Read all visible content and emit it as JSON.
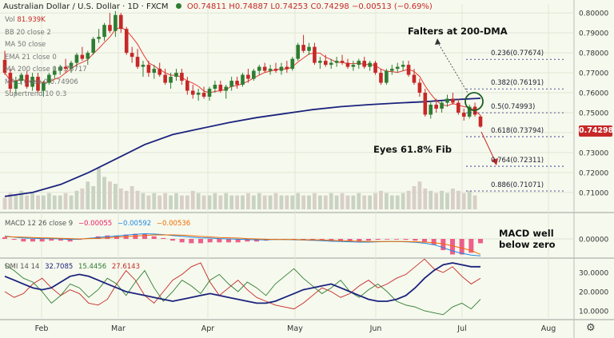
{
  "header": {
    "symbol": "Australian Dollar / U.S. Dollar · 1D · FXCM",
    "ohlc": "O0.74811 H0.74887 L0.74253 C0.74298 −0.00513 (−0.69%)"
  },
  "legend": [
    {
      "label": "Vol",
      "value": "81.939K"
    },
    {
      "label": "BB 20 close 2",
      "value": ""
    },
    {
      "label": "MA 50 close",
      "value": ""
    },
    {
      "label": "EMA 21 close 0",
      "value": ""
    },
    {
      "label": "MA 200 close 0",
      "value": "0.75717"
    },
    {
      "label": "MA 5 close 0",
      "value": "0.74906"
    },
    {
      "label": "Supertrend 10 0.3",
      "value": ""
    }
  ],
  "annotations": {
    "falters": "Falters at 200-DMA",
    "eyes": "Eyes 61.8% Fib",
    "macd_note": "MACD well below zero"
  },
  "price_tag": "0.74298",
  "macd_legend": {
    "label": "MACD 12 26 close 9",
    "v1": "−0.00055",
    "v2": "−0.00592",
    "v3": "−0.00536"
  },
  "dmi_legend": {
    "label": "DMI 14 14",
    "v1": "32.7085",
    "v2": "15.4456",
    "v3": "27.6143"
  },
  "colors": {
    "up": "#2e7d32",
    "down": "#c62828",
    "ma200": "#1a237e",
    "ma5": "#e53935",
    "macd": "#1e88e5",
    "signal": "#ef6c00",
    "hist": "#e91e63",
    "fib": "#1a237e",
    "tag": "#c62828"
  },
  "chart_data": {
    "type": "candlestick",
    "x_ticks": [
      "Feb",
      "Mar",
      "Apr",
      "May",
      "Jun",
      "Jul",
      "Aug"
    ],
    "price_axis": [
      "0.80000",
      "0.79000",
      "0.78000",
      "0.77000",
      "0.76000",
      "0.75000",
      "0.74000",
      "0.73000",
      "0.72000",
      "0.71000"
    ],
    "macd_axis": [
      "0.00000"
    ],
    "dmi_axis": [
      "30.0000",
      "20.0000",
      "10.0000"
    ],
    "fib_levels": [
      {
        "label": "0.236(0.77674)",
        "value": 0.77674
      },
      {
        "label": "0.382(0.76191)",
        "value": 0.76191
      },
      {
        "label": "0.5(0.74993)",
        "value": 0.74993
      },
      {
        "label": "0.618(0.73794)",
        "value": 0.73794
      },
      {
        "label": "0.764(0.72311)",
        "value": 0.72311
      },
      {
        "label": "0.886(0.71071)",
        "value": 0.71071
      }
    ],
    "candles": [
      [
        0.7765,
        0.781,
        0.769,
        0.77
      ],
      [
        0.77,
        0.772,
        0.76,
        0.762
      ],
      [
        0.762,
        0.768,
        0.759,
        0.766
      ],
      [
        0.766,
        0.77,
        0.764,
        0.769
      ],
      [
        0.769,
        0.771,
        0.762,
        0.763
      ],
      [
        0.763,
        0.77,
        0.761,
        0.768
      ],
      [
        0.768,
        0.77,
        0.76,
        0.761
      ],
      [
        0.761,
        0.766,
        0.758,
        0.765
      ],
      [
        0.765,
        0.77,
        0.764,
        0.769
      ],
      [
        0.769,
        0.773,
        0.767,
        0.771
      ],
      [
        0.771,
        0.774,
        0.769,
        0.773
      ],
      [
        0.773,
        0.777,
        0.77,
        0.772
      ],
      [
        0.772,
        0.776,
        0.77,
        0.775
      ],
      [
        0.775,
        0.78,
        0.773,
        0.779
      ],
      [
        0.779,
        0.783,
        0.776,
        0.777
      ],
      [
        0.777,
        0.781,
        0.774,
        0.78
      ],
      [
        0.78,
        0.788,
        0.779,
        0.787
      ],
      [
        0.787,
        0.792,
        0.785,
        0.788
      ],
      [
        0.788,
        0.795,
        0.786,
        0.794
      ],
      [
        0.794,
        0.8,
        0.79,
        0.791
      ],
      [
        0.791,
        0.801,
        0.788,
        0.799
      ],
      [
        0.799,
        0.8,
        0.79,
        0.792
      ],
      [
        0.792,
        0.793,
        0.779,
        0.78
      ],
      [
        0.78,
        0.783,
        0.775,
        0.778
      ],
      [
        0.778,
        0.782,
        0.772,
        0.773
      ],
      [
        0.773,
        0.776,
        0.768,
        0.774
      ],
      [
        0.774,
        0.776,
        0.768,
        0.77
      ],
      [
        0.77,
        0.774,
        0.767,
        0.772
      ],
      [
        0.772,
        0.775,
        0.768,
        0.769
      ],
      [
        0.769,
        0.772,
        0.764,
        0.765
      ],
      [
        0.765,
        0.77,
        0.762,
        0.768
      ],
      [
        0.768,
        0.772,
        0.766,
        0.77
      ],
      [
        0.77,
        0.772,
        0.764,
        0.766
      ],
      [
        0.766,
        0.768,
        0.759,
        0.761
      ],
      [
        0.761,
        0.764,
        0.757,
        0.759
      ],
      [
        0.759,
        0.762,
        0.756,
        0.76
      ],
      [
        0.76,
        0.763,
        0.757,
        0.758
      ],
      [
        0.758,
        0.763,
        0.756,
        0.762
      ],
      [
        0.762,
        0.766,
        0.76,
        0.764
      ],
      [
        0.764,
        0.766,
        0.76,
        0.761
      ],
      [
        0.761,
        0.764,
        0.757,
        0.763
      ],
      [
        0.763,
        0.768,
        0.761,
        0.766
      ],
      [
        0.766,
        0.768,
        0.762,
        0.764
      ],
      [
        0.764,
        0.77,
        0.763,
        0.769
      ],
      [
        0.769,
        0.772,
        0.765,
        0.767
      ],
      [
        0.767,
        0.772,
        0.766,
        0.771
      ],
      [
        0.771,
        0.774,
        0.769,
        0.773
      ],
      [
        0.773,
        0.775,
        0.77,
        0.771
      ],
      [
        0.771,
        0.774,
        0.769,
        0.772
      ],
      [
        0.772,
        0.775,
        0.77,
        0.771
      ],
      [
        0.771,
        0.775,
        0.769,
        0.773
      ],
      [
        0.773,
        0.776,
        0.77,
        0.772
      ],
      [
        0.772,
        0.778,
        0.771,
        0.777
      ],
      [
        0.777,
        0.785,
        0.776,
        0.784
      ],
      [
        0.784,
        0.789,
        0.78,
        0.781
      ],
      [
        0.781,
        0.785,
        0.779,
        0.783
      ],
      [
        0.783,
        0.785,
        0.774,
        0.775
      ],
      [
        0.775,
        0.778,
        0.772,
        0.776
      ],
      [
        0.776,
        0.779,
        0.773,
        0.774
      ],
      [
        0.774,
        0.777,
        0.772,
        0.775
      ],
      [
        0.775,
        0.778,
        0.773,
        0.776
      ],
      [
        0.776,
        0.779,
        0.774,
        0.775
      ],
      [
        0.775,
        0.777,
        0.772,
        0.773
      ],
      [
        0.773,
        0.776,
        0.771,
        0.774
      ],
      [
        0.774,
        0.777,
        0.772,
        0.776
      ],
      [
        0.776,
        0.778,
        0.772,
        0.773
      ],
      [
        0.773,
        0.776,
        0.771,
        0.775
      ],
      [
        0.775,
        0.776,
        0.769,
        0.77
      ],
      [
        0.77,
        0.772,
        0.764,
        0.765
      ],
      [
        0.765,
        0.772,
        0.764,
        0.771
      ],
      [
        0.771,
        0.774,
        0.769,
        0.772
      ],
      [
        0.772,
        0.775,
        0.77,
        0.773
      ],
      [
        0.773,
        0.776,
        0.771,
        0.774
      ],
      [
        0.774,
        0.776,
        0.768,
        0.769
      ],
      [
        0.769,
        0.772,
        0.764,
        0.765
      ],
      [
        0.765,
        0.767,
        0.758,
        0.76
      ],
      [
        0.76,
        0.762,
        0.748,
        0.749
      ],
      [
        0.749,
        0.756,
        0.747,
        0.754
      ],
      [
        0.754,
        0.757,
        0.75,
        0.752
      ],
      [
        0.752,
        0.756,
        0.75,
        0.755
      ],
      [
        0.755,
        0.759,
        0.753,
        0.757
      ],
      [
        0.757,
        0.76,
        0.754,
        0.755
      ],
      [
        0.755,
        0.757,
        0.749,
        0.75
      ],
      [
        0.75,
        0.752,
        0.746,
        0.748
      ],
      [
        0.748,
        0.754,
        0.747,
        0.753
      ],
      [
        0.753,
        0.755,
        0.748,
        0.749
      ],
      [
        0.7481,
        0.7489,
        0.7425,
        0.743
      ]
    ],
    "ma200": [
      0.708,
      0.71,
      0.714,
      0.72,
      0.727,
      0.734,
      0.739,
      0.742,
      0.745,
      0.7475,
      0.7495,
      0.7515,
      0.753,
      0.754,
      0.7548,
      0.7555,
      0.7565,
      0.7572
    ],
    "volumes": [
      0.25,
      0.35,
      0.3,
      0.4,
      0.3,
      0.35,
      0.3,
      0.3,
      0.35,
      0.3,
      0.3,
      0.35,
      0.3,
      0.4,
      0.45,
      0.6,
      0.5,
      0.9,
      0.7,
      0.6,
      0.55,
      0.45,
      0.4,
      0.5,
      0.4,
      0.35,
      0.3,
      0.35,
      0.3,
      0.35,
      0.3,
      0.35,
      0.3,
      0.3,
      0.4,
      0.35,
      0.3,
      0.3,
      0.35,
      0.3,
      0.35,
      0.3,
      0.3,
      0.3,
      0.35,
      0.3,
      0.35,
      0.3,
      0.3,
      0.35,
      0.3,
      0.3,
      0.3,
      0.35,
      0.3,
      0.3,
      0.35,
      0.3,
      0.3,
      0.35,
      0.3,
      0.35,
      0.3,
      0.3,
      0.35,
      0.3,
      0.3,
      0.35,
      0.4,
      0.35,
      0.3,
      0.3,
      0.35,
      0.4,
      0.5,
      0.6,
      0.45,
      0.4,
      0.35,
      0.4,
      0.35,
      0.45,
      0.4,
      0.35,
      0.4,
      0.3
    ],
    "macd": [
      0.001,
      0.0006,
      0.0003,
      0.0002,
      0.0001,
      0.0001,
      0.0,
      -0.0002,
      -0.0001,
      0.0002,
      0.0005,
      0.0008,
      0.001,
      0.0013,
      0.0016,
      0.0018,
      0.0017,
      0.0015,
      0.0012,
      0.0009,
      0.0006,
      0.0004,
      0.0003,
      0.0001,
      0.0,
      -0.0001,
      -0.0002,
      -0.0003,
      -0.0003,
      -0.0002,
      -0.0002,
      -0.0003,
      -0.0004,
      -0.0005,
      -0.0006,
      -0.0008,
      -0.0009,
      -0.001,
      -0.0011,
      -0.0011,
      -0.001,
      -0.0009,
      -0.0009,
      -0.001,
      -0.0012,
      -0.0015,
      -0.002,
      -0.003,
      -0.0042,
      -0.005,
      -0.0056,
      -0.0059
    ],
    "signal": [
      0.0008,
      0.0007,
      0.0006,
      0.0005,
      0.0004,
      0.0003,
      0.0002,
      0.0001,
      0.0,
      0.0001,
      0.0002,
      0.0004,
      0.0006,
      0.0008,
      0.001,
      0.0012,
      0.0014,
      0.0014,
      0.0014,
      0.0013,
      0.0011,
      0.0009,
      0.0007,
      0.0005,
      0.0004,
      0.0003,
      0.0001,
      0.0,
      -0.0001,
      -0.0002,
      -0.0002,
      -0.0002,
      -0.0003,
      -0.0003,
      -0.0004,
      -0.0005,
      -0.0006,
      -0.0007,
      -0.0008,
      -0.0009,
      -0.0009,
      -0.0009,
      -0.0009,
      -0.0009,
      -0.001,
      -0.0011,
      -0.0013,
      -0.0017,
      -0.0024,
      -0.0032,
      -0.004,
      -0.0054
    ],
    "adx": [
      28,
      26,
      24,
      22,
      21,
      22,
      25,
      28,
      29,
      28,
      26,
      24,
      22,
      20,
      19,
      18,
      17,
      16,
      15,
      16,
      17,
      18,
      19,
      18,
      17,
      16,
      15,
      14,
      14,
      15,
      17,
      19,
      21,
      22,
      23,
      24,
      22,
      20,
      18,
      16,
      15,
      15,
      16,
      18,
      22,
      27,
      31,
      34,
      35,
      34,
      33,
      33
    ],
    "diplus": [
      34,
      31,
      27,
      25,
      20,
      14,
      18,
      24,
      22,
      17,
      21,
      27,
      24,
      18,
      25,
      31,
      22,
      15,
      20,
      26,
      23,
      19,
      26,
      29,
      24,
      20,
      25,
      22,
      18,
      24,
      28,
      32,
      27,
      23,
      19,
      22,
      26,
      20,
      17,
      21,
      24,
      20,
      15,
      13,
      12,
      10,
      9,
      8,
      12,
      14,
      11,
      16
    ],
    "diminus": [
      20,
      17,
      19,
      24,
      27,
      22,
      18,
      21,
      19,
      14,
      13,
      16,
      24,
      31,
      26,
      18,
      14,
      20,
      26,
      29,
      33,
      35,
      25,
      18,
      22,
      26,
      21,
      17,
      15,
      13,
      12,
      11,
      14,
      18,
      22,
      20,
      17,
      19,
      23,
      26,
      22,
      24,
      27,
      29,
      33,
      37,
      32,
      30,
      33,
      28,
      24,
      27
    ]
  }
}
